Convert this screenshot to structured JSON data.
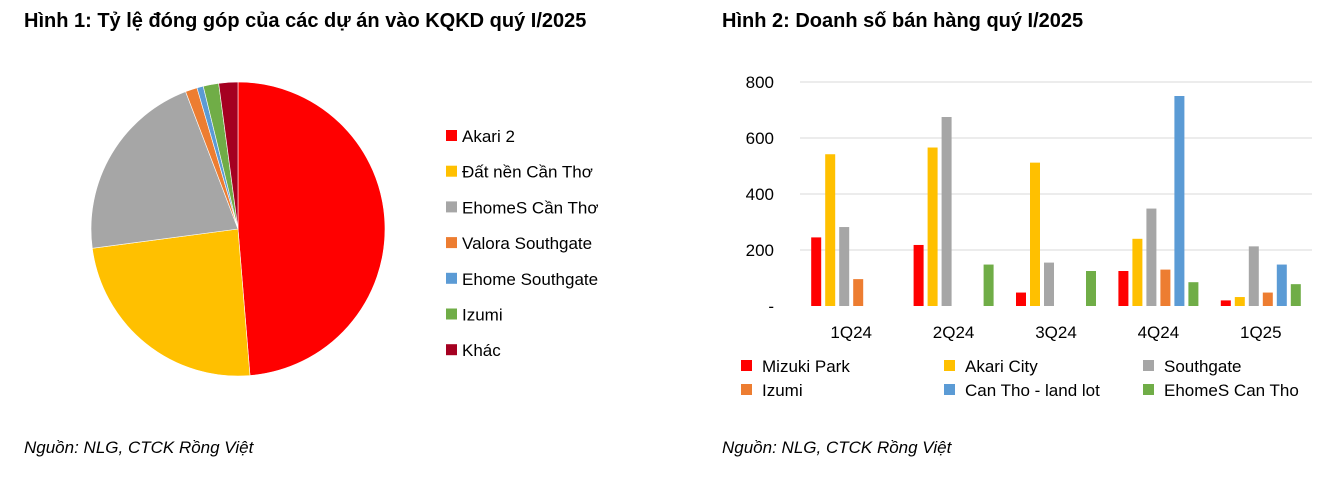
{
  "figure1": {
    "title": "Hình 1: Tỷ lệ đóng góp của các dự án vào KQKD quý I/2025",
    "source": "Nguồn: NLG, CTCK Rồng Việt",
    "chart_data": {
      "type": "pie",
      "labels": [
        "Akari 2",
        "Đất nền Cần Thơ",
        "EhomeS Cần Thơ",
        "Valora Southgate",
        "Ehome Southgate",
        "Izumi",
        "Khác"
      ],
      "values": [
        48.7,
        24.2,
        21.3,
        1.3,
        0.7,
        1.7,
        2.1
      ],
      "colors": [
        "#ff0000",
        "#ffc000",
        "#a6a6a6",
        "#ed7d31",
        "#5b9bd5",
        "#70ad47",
        "#a50021"
      ],
      "legend_position": "right"
    }
  },
  "figure2": {
    "title": "Hình 2: Doanh số bán hàng quý I/2025",
    "source": "Nguồn: NLG, CTCK Rồng Việt",
    "chart_data": {
      "type": "bar",
      "categories": [
        "1Q24",
        "2Q24",
        "3Q24",
        "4Q24",
        "1Q25"
      ],
      "series": [
        {
          "name": "Mizuki Park",
          "color": "#ff0000",
          "values": [
            245,
            218,
            48,
            125,
            20
          ]
        },
        {
          "name": "Akari City",
          "color": "#ffc000",
          "values": [
            542,
            566,
            512,
            240,
            32
          ]
        },
        {
          "name": "Southgate",
          "color": "#a6a6a6",
          "values": [
            282,
            675,
            155,
            348,
            213
          ]
        },
        {
          "name": "Izumi",
          "color": "#ed7d31",
          "values": [
            96,
            0,
            0,
            130,
            48
          ]
        },
        {
          "name": "Can Tho - land lot",
          "color": "#5b9bd5",
          "values": [
            0,
            0,
            0,
            750,
            148
          ]
        },
        {
          "name": "EhomeS Can Tho",
          "color": "#70ad47",
          "values": [
            0,
            148,
            125,
            85,
            78
          ]
        }
      ],
      "ylim": [
        0,
        800
      ],
      "yticks": [
        0,
        200,
        400,
        600,
        800
      ],
      "ytick_labels": [
        "-",
        "200",
        "400",
        "600",
        "800"
      ],
      "grid": true,
      "legend_position": "bottom"
    }
  }
}
